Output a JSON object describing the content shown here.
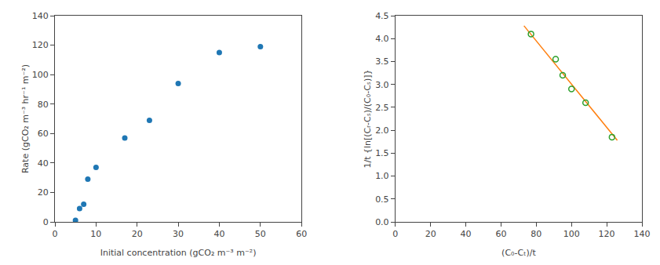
{
  "chart_data": [
    {
      "type": "scatter",
      "xlabel": "Initial concentration (gCO₂ m⁻³ m⁻²)",
      "ylabel": "Rate (gCO₂ m⁻³ hr⁻¹ m⁻²)",
      "series": [
        {
          "type": "scatter",
          "marker": "circle",
          "x": [
            5,
            6,
            7,
            8,
            10,
            17,
            23,
            30,
            40,
            50
          ],
          "values": [
            1,
            9,
            12,
            29,
            37,
            57,
            69,
            94,
            115,
            119
          ]
        }
      ],
      "xlim": [
        0,
        60
      ],
      "ylim": [
        0,
        140
      ],
      "xticks": [
        0,
        10,
        20,
        30,
        40,
        50,
        60
      ],
      "yticks": [
        0,
        20,
        40,
        60,
        80,
        100,
        120,
        140
      ],
      "grid": false
    },
    {
      "type": "scatter",
      "xlabel": "(C₀-Cₜ)/t",
      "ylabel": "1/t {ln[(Cᵣ-Cₛ)/(C₀-Cₛ)]}",
      "series": [
        {
          "type": "line",
          "line_style": "solid",
          "x": [
            73,
            126
          ],
          "values": [
            4.28,
            1.78
          ]
        },
        {
          "type": "scatter",
          "marker": "circle-open",
          "x": [
            77,
            91,
            95,
            100,
            108,
            123
          ],
          "values": [
            4.1,
            3.55,
            3.2,
            2.9,
            2.6,
            1.85
          ]
        }
      ],
      "xlim": [
        0,
        140
      ],
      "ylim": [
        0,
        4.5
      ],
      "xticks": [
        0,
        20,
        40,
        60,
        80,
        100,
        120,
        140
      ],
      "yticks": [
        {
          "value": 0,
          "label": "0.0"
        },
        0.5,
        {
          "value": 1.0,
          "label": "1.0"
        },
        1.5,
        {
          "value": 2.0,
          "label": "2.0"
        },
        2.5,
        {
          "value": 3.0,
          "label": "3.0"
        },
        3.5,
        {
          "value": 4.0,
          "label": "4.0"
        },
        4.5
      ],
      "grid": false
    }
  ]
}
